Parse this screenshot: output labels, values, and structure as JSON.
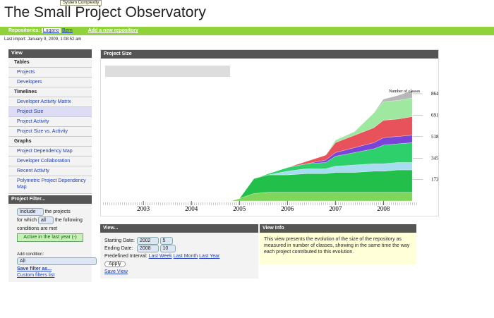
{
  "tooltip": "System Complexity",
  "header": {
    "title": "The Small Project Observatory",
    "repositories_label": "Repositories:",
    "repositories": [
      "Lugano",
      "Bern"
    ],
    "add_repository": "Add a new repository",
    "last_import": "Last import: January 9, 2009, 1:08:52 am"
  },
  "sidebar": {
    "title": "View",
    "sections": [
      {
        "title": "Tables",
        "items": [
          "Projects",
          "Developers"
        ]
      },
      {
        "title": "Timelines",
        "items": [
          "Developer Activity Matrix",
          "Project Size",
          "Project Activity",
          "Project Size vs. Activity"
        ]
      },
      {
        "title": "Graphs",
        "items": [
          "Project Dependency Map",
          "Developer Collaboration",
          "Recent Activity",
          "Polymetric Project Dependency Map"
        ]
      }
    ]
  },
  "filter": {
    "title": "Project Filter...",
    "include": "Include",
    "text1": "the projects",
    "for_which": "for which",
    "all": "all",
    "text2": "the following conditions are met",
    "condition": "Active in the last year (-)",
    "add_condition": "Add condition:",
    "condition_select": "All",
    "save": "Save filter as...",
    "custom": "Custom filters list"
  },
  "chart_panel": {
    "title": "Project Size"
  },
  "chart_data": {
    "type": "stacked_area",
    "ylabel": "Number of classes",
    "x": [
      2004.8,
      2005.0,
      2005.3,
      2005.6,
      2006.0,
      2006.4,
      2006.8,
      2007.0,
      2007.4,
      2007.8,
      2008.0,
      2008.3,
      2008.6
    ],
    "series": [
      {
        "color": "#7fd65a",
        "values": [
          0,
          20,
          60,
          70,
          70,
          70,
          70,
          70,
          70,
          70,
          70,
          70,
          70
        ]
      },
      {
        "color": "#22bf4a",
        "values": [
          0,
          0,
          120,
          140,
          140,
          150,
          150,
          160,
          160,
          170,
          170,
          180,
          180
        ]
      },
      {
        "color": "#a8dcf0",
        "values": [
          0,
          0,
          0,
          0,
          30,
          40,
          40,
          50,
          60,
          60,
          60,
          60,
          60
        ]
      },
      {
        "color": "#2dd06a",
        "values": [
          0,
          0,
          0,
          10,
          30,
          40,
          50,
          80,
          100,
          120,
          150,
          150,
          160
        ]
      },
      {
        "color": "#7a44d8",
        "values": [
          0,
          0,
          0,
          0,
          0,
          0,
          20,
          30,
          40,
          50,
          60,
          60,
          60
        ]
      },
      {
        "color": "#e8525a",
        "values": [
          0,
          0,
          0,
          0,
          0,
          20,
          40,
          80,
          100,
          120,
          140,
          140,
          150
        ]
      },
      {
        "color": "#9ee8a0",
        "values": [
          0,
          0,
          0,
          0,
          0,
          0,
          0,
          20,
          30,
          120,
          150,
          150,
          150
        ]
      },
      {
        "color": "#b8b8b8",
        "values": [
          0,
          0,
          0,
          0,
          0,
          0,
          0,
          0,
          0,
          0,
          20,
          40,
          60
        ]
      }
    ],
    "xlim": [
      2002.16,
      2008.7
    ],
    "xticks": [
      2003,
      2004,
      2005,
      2006,
      2007,
      2008
    ],
    "ylim": [
      0,
      1000
    ],
    "yticks": [
      172,
      345,
      518,
      691,
      864
    ]
  },
  "view_panel": {
    "title": "View...",
    "start_label": "Starting Date:",
    "start_year": 2002,
    "start_month": 5,
    "end_label": "Ending Date:",
    "end_year": 2008,
    "end_month": 10,
    "interval_label": "Predefined Interval:",
    "intervals": [
      "Last Week",
      "Last Month",
      "Last Year"
    ],
    "apply": "Apply",
    "save": "Save View"
  },
  "info_panel": {
    "title": "View Info",
    "text": "This view presents the evolution of the size of the repository as measured in number of classes, showing in the same time the way each project contributed to this evolution."
  }
}
